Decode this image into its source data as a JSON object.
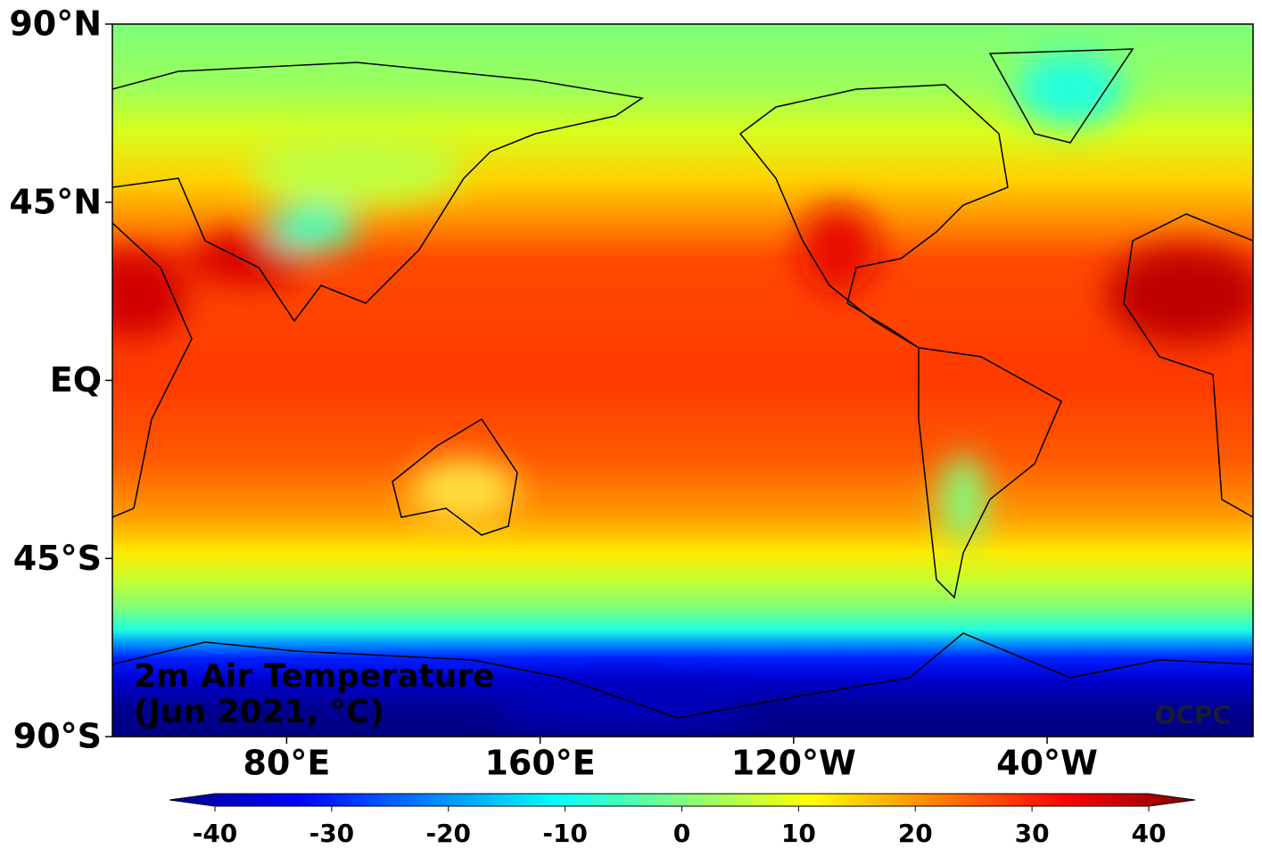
{
  "map": {
    "title": [
      "2m Air Temperature",
      "(Jun 2021, °C)"
    ],
    "credit": "OCPC",
    "lat_ticks": [
      {
        "value": 90,
        "label": "90°N"
      },
      {
        "value": 45,
        "label": "45°N"
      },
      {
        "value": 0,
        "label": "EQ"
      },
      {
        "value": -45,
        "label": "45°S"
      },
      {
        "value": -90,
        "label": "90°S"
      }
    ],
    "lon_ticks": [
      {
        "value": 80,
        "label": "80°E"
      },
      {
        "value": 160,
        "label": "160°E"
      },
      {
        "value": -120,
        "label": "120°W"
      },
      {
        "value": -40,
        "label": "40°W"
      }
    ],
    "colorbar": {
      "range": [
        -40,
        40
      ],
      "ticks": [
        -40,
        -30,
        -20,
        -10,
        0,
        10,
        20,
        30,
        40
      ]
    }
  }
}
